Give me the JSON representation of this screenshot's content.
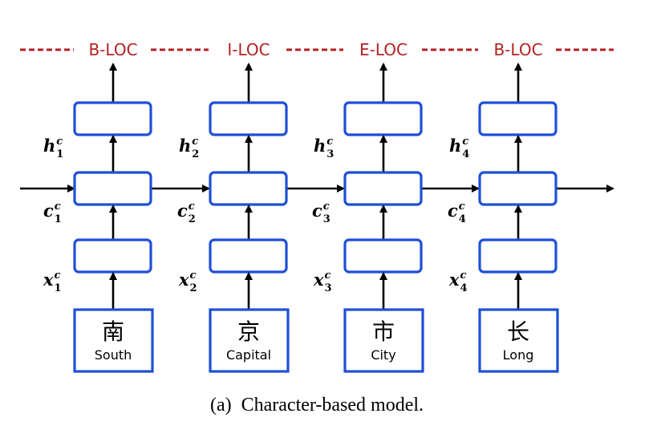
{
  "tags": [
    "B-LOC",
    "I-LOC",
    "E-LOC",
    "B-LOC"
  ],
  "columns": [
    {
      "char": "南",
      "gloss": "South",
      "h_var": "h",
      "c_var": "c",
      "x_var": "x",
      "sup": "c",
      "sub": "1"
    },
    {
      "char": "京",
      "gloss": "Capital",
      "h_var": "h",
      "c_var": "c",
      "x_var": "x",
      "sup": "c",
      "sub": "2"
    },
    {
      "char": "市",
      "gloss": "City",
      "h_var": "h",
      "c_var": "c",
      "x_var": "x",
      "sup": "c",
      "sub": "3"
    },
    {
      "char": "长",
      "gloss": "Long",
      "h_var": "h",
      "c_var": "c",
      "x_var": "x",
      "sup": "c",
      "sub": "4"
    }
  ],
  "caption": "(a)  Character-based model.",
  "colors": {
    "box_border": "#1f4fd6",
    "tag_text": "#b22222",
    "arrow": "#000000"
  }
}
